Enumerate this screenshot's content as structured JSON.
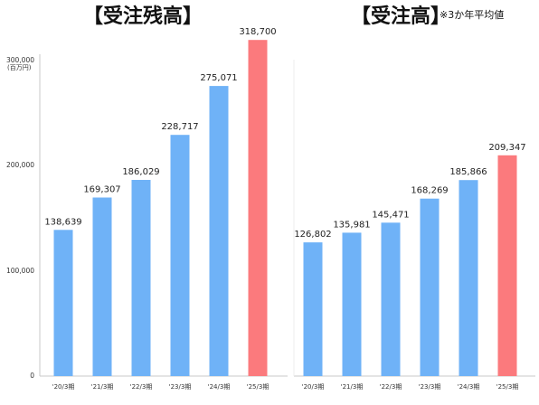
{
  "chart_data": [
    {
      "type": "bar",
      "title": "【受注残高】",
      "ylabel": "(百万円)",
      "ylim": [
        0,
        300000
      ],
      "yticks": [
        "0",
        "100,000",
        "200,000",
        "300,000"
      ],
      "categories": [
        "'20/3期",
        "'21/3期",
        "'22/3期",
        "'23/3期",
        "'24/3期",
        "'25/3期"
      ],
      "values": [
        138639,
        169307,
        186029,
        228717,
        275071,
        318700
      ],
      "value_labels": [
        "138,639",
        "169,307",
        "186,029",
        "228,717",
        "275,071",
        "318,700"
      ],
      "colors": [
        "#6fb2f7",
        "#6fb2f7",
        "#6fb2f7",
        "#6fb2f7",
        "#6fb2f7",
        "#fb7a7d"
      ]
    },
    {
      "type": "bar",
      "title": "【受注高】",
      "note": "※3か年平均値",
      "ylim": [
        0,
        300000
      ],
      "categories": [
        "'20/3期",
        "'21/3期",
        "'22/3期",
        "'23/3期",
        "'24/3期",
        "'25/3期"
      ],
      "values": [
        126802,
        135981,
        145471,
        168269,
        185866,
        209347
      ],
      "value_labels": [
        "126,802",
        "135,981",
        "145,471",
        "168,269",
        "185,866",
        "209,347"
      ],
      "colors": [
        "#6fb2f7",
        "#6fb2f7",
        "#6fb2f7",
        "#6fb2f7",
        "#6fb2f7",
        "#fb7a7d"
      ]
    }
  ]
}
